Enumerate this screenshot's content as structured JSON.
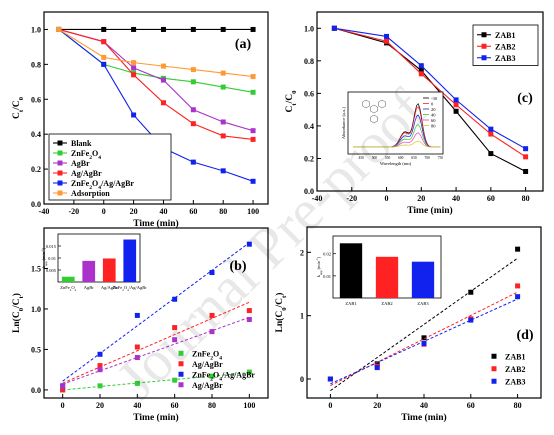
{
  "watermark": "Journal Pre-proof",
  "chart_data": [
    {
      "id": "a",
      "type": "line",
      "panel_label": "(a)",
      "xlabel": "Time (min)",
      "ylabel": "Ct/C0",
      "xlim": [
        -40,
        110
      ],
      "ylim": [
        0.0,
        1.1
      ],
      "xticks": [
        -40,
        -20,
        0,
        20,
        40,
        60,
        80,
        100
      ],
      "yticks": [
        0.0,
        0.2,
        0.4,
        0.6,
        0.8,
        1.0
      ],
      "x": [
        -30,
        0,
        20,
        40,
        60,
        80,
        100
      ],
      "legend_position": "bottom-left",
      "series": [
        {
          "name": "Blank",
          "color": "#000000",
          "marker": "square",
          "values": [
            1.0,
            1.0,
            1.0,
            1.0,
            1.0,
            1.0,
            1.0
          ]
        },
        {
          "name": "ZnFe2O4",
          "color": "#33cc33",
          "marker": "square",
          "values": [
            1.0,
            0.8,
            0.75,
            0.72,
            0.7,
            0.67,
            0.64
          ]
        },
        {
          "name": "AgBr",
          "color": "#aa33cc",
          "marker": "square",
          "values": [
            1.0,
            0.93,
            0.78,
            0.71,
            0.54,
            0.47,
            0.42
          ]
        },
        {
          "name": "Ag/AgBr",
          "color": "#ff2222",
          "marker": "square",
          "values": [
            1.0,
            0.93,
            0.74,
            0.58,
            0.46,
            0.39,
            0.37
          ]
        },
        {
          "name": "ZnFe2O4/Ag/AgBr",
          "color": "#1122ee",
          "marker": "square",
          "values": [
            1.0,
            0.8,
            0.51,
            0.32,
            0.24,
            0.19,
            0.13
          ]
        },
        {
          "name": "Adsorption",
          "color": "#ff9933",
          "marker": "square",
          "values": [
            1.0,
            0.84,
            0.81,
            0.79,
            0.77,
            0.75,
            0.73
          ]
        }
      ]
    },
    {
      "id": "b",
      "type": "scatter",
      "panel_label": "(b)",
      "xlabel": "Time (min)",
      "ylabel": "Ln(C0/Ct)",
      "xlim": [
        -10,
        110
      ],
      "ylim": [
        -0.1,
        2.0
      ],
      "xticks": [
        0,
        20,
        40,
        60,
        80,
        100
      ],
      "yticks": [
        0.0,
        0.5,
        1.0,
        1.5
      ],
      "x": [
        0,
        20,
        40,
        60,
        80,
        100
      ],
      "legend_position": "bottom-right",
      "series": [
        {
          "name": "ZnFe2O4",
          "color": "#33cc33",
          "marker": "square",
          "fit": true,
          "values": [
            0.0,
            0.05,
            0.08,
            0.12,
            0.17,
            0.22
          ]
        },
        {
          "name": "Ag/AgBr",
          "color": "#ff2222",
          "marker": "square",
          "fit": true,
          "values": [
            0.0,
            0.3,
            0.53,
            0.77,
            0.92,
            0.98
          ]
        },
        {
          "name": "ZnFe2O4/Ag/AgBr",
          "color": "#1122ee",
          "marker": "square",
          "fit": true,
          "values": [
            0.05,
            0.44,
            0.92,
            1.12,
            1.45,
            1.8
          ]
        },
        {
          "name": "Ag/AgBr",
          "color": "#aa33cc",
          "marker": "square",
          "fit": true,
          "values": [
            0.04,
            0.25,
            0.4,
            0.62,
            0.72,
            0.87
          ]
        }
      ],
      "inset": {
        "type": "bar",
        "ylabel": "kapp (min-1)",
        "yticks": [
          0.005,
          0.01,
          0.015
        ],
        "ylim": [
          0,
          0.02
        ],
        "categories": [
          "ZnFe2O4",
          "AgBr",
          "Ag/AgBr",
          "ZnFe2O4/Ag/AgBr"
        ],
        "values": [
          0.0022,
          0.0088,
          0.0098,
          0.0177
        ],
        "colors": [
          "#33cc33",
          "#aa33cc",
          "#ff2222",
          "#1122ee"
        ]
      }
    },
    {
      "id": "c",
      "type": "line",
      "panel_label": "(c)",
      "xlabel": "Time (min)",
      "ylabel": "Ct/C0",
      "xlim": [
        -40,
        90
      ],
      "ylim": [
        0.0,
        1.1
      ],
      "xticks": [
        -40,
        -20,
        0,
        20,
        40,
        60,
        80
      ],
      "yticks": [
        0.0,
        0.2,
        0.4,
        0.6,
        0.8,
        1.0
      ],
      "x": [
        -30,
        0,
        20,
        40,
        60,
        80
      ],
      "legend_position": "top-right",
      "series": [
        {
          "name": "ZAB1",
          "color": "#000000",
          "marker": "square",
          "values": [
            1.0,
            0.91,
            0.74,
            0.49,
            0.23,
            0.12
          ]
        },
        {
          "name": "ZAB2",
          "color": "#ff2222",
          "marker": "square",
          "values": [
            1.0,
            0.92,
            0.72,
            0.53,
            0.35,
            0.21
          ]
        },
        {
          "name": "ZAB3",
          "color": "#1122ee",
          "marker": "square",
          "values": [
            1.0,
            0.95,
            0.77,
            0.56,
            0.38,
            0.26
          ]
        }
      ],
      "inset": {
        "type": "line",
        "xlabel": "Wavelength (nm)",
        "ylabel": "Absorbance (a.u.)",
        "xticks": [
          450,
          500,
          550,
          600,
          650,
          700,
          750
        ],
        "legend": [
          "-30",
          "0",
          "20",
          "40",
          "60",
          "80"
        ],
        "colors": [
          "#000000",
          "#ff2222",
          "#1122ee",
          "#33cc33",
          "#ff33cc",
          "#cccc22"
        ],
        "peak_heights": [
          1.0,
          0.93,
          0.74,
          0.52,
          0.33,
          0.14
        ]
      }
    },
    {
      "id": "d",
      "type": "scatter",
      "panel_label": "(d)",
      "xlabel": "Time (min)",
      "ylabel": "Ln(C0/Ct)",
      "xlim": [
        -10,
        90
      ],
      "ylim": [
        -0.3,
        2.4
      ],
      "xticks": [
        0,
        20,
        40,
        60,
        80
      ],
      "yticks": [
        0,
        1,
        2
      ],
      "x": [
        0,
        20,
        40,
        60,
        80
      ],
      "legend_position": "bottom-right",
      "series": [
        {
          "name": "ZAB1",
          "color": "#000000",
          "marker": "square",
          "fit": true,
          "values": [
            0.0,
            0.24,
            0.65,
            1.37,
            2.05
          ]
        },
        {
          "name": "ZAB2",
          "color": "#ff2222",
          "marker": "square",
          "fit": true,
          "values": [
            0.0,
            0.2,
            0.55,
            0.95,
            1.47
          ]
        },
        {
          "name": "ZAB3",
          "color": "#1122ee",
          "marker": "square",
          "fit": true,
          "values": [
            0.0,
            0.18,
            0.56,
            0.93,
            1.3
          ]
        }
      ],
      "inset": {
        "type": "bar",
        "ylabel": "kapp (min-1)",
        "yticks": [
          0.01,
          0.02
        ],
        "ylim": [
          0,
          0.028
        ],
        "categories": [
          "ZAB1",
          "ZAB2",
          "ZAB3"
        ],
        "values": [
          0.0247,
          0.0186,
          0.0164
        ],
        "colors": [
          "#000000",
          "#ff2222",
          "#1122ee"
        ]
      }
    }
  ]
}
